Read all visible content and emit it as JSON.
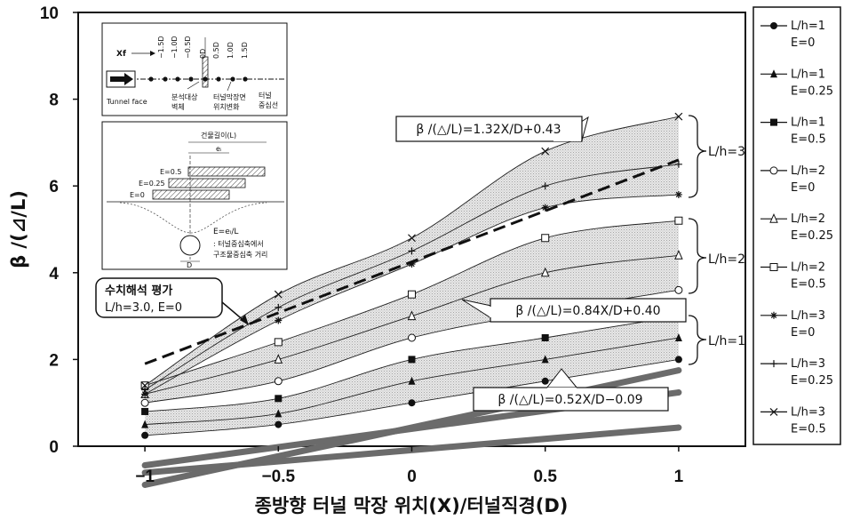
{
  "chart_data": {
    "type": "line",
    "xlabel": "종방향 터널 막장 위치(X)/터널직경(D)",
    "ylabel": "β /(⊿/L)",
    "xlim": [
      -1.25,
      1.25
    ],
    "ylim": [
      0,
      10
    ],
    "x_ticks": [
      "−1",
      "−0.5",
      "0",
      "0.5",
      "1"
    ],
    "y_ticks": [
      "0",
      "2",
      "4",
      "6",
      "8",
      "10"
    ],
    "x": [
      -1,
      -0.5,
      0,
      0.5,
      1
    ],
    "series": [
      {
        "name": "L/h=1\nE=0",
        "marker": "filled-circle",
        "values": [
          0.25,
          0.5,
          1.0,
          1.5,
          2.0
        ]
      },
      {
        "name": "L/h=1\nE=0.25",
        "marker": "filled-triangle",
        "values": [
          0.5,
          0.75,
          1.5,
          2.0,
          2.5
        ]
      },
      {
        "name": "L/h=1\nE=0.5",
        "marker": "filled-square",
        "values": [
          0.8,
          1.1,
          2.0,
          2.5,
          3.0
        ]
      },
      {
        "name": "L/h=2\nE=0",
        "marker": "open-circle",
        "values": [
          1.0,
          1.5,
          2.5,
          3.1,
          3.6
        ]
      },
      {
        "name": "L/h=2\nE=0.25",
        "marker": "open-triangle",
        "values": [
          1.2,
          2.0,
          3.0,
          4.0,
          4.4
        ]
      },
      {
        "name": "L/h=2\nE=0.5",
        "marker": "open-square",
        "values": [
          1.4,
          2.4,
          3.5,
          4.8,
          5.2
        ]
      },
      {
        "name": "L/h=3\nE=0",
        "marker": "asterisk",
        "values": [
          1.2,
          2.9,
          4.2,
          5.5,
          5.8
        ]
      },
      {
        "name": "L/h=3\nE=0.25",
        "marker": "plus",
        "values": [
          1.3,
          3.2,
          4.5,
          6.0,
          6.5
        ]
      },
      {
        "name": "L/h=3\nE=0.5",
        "marker": "cross",
        "values": [
          1.4,
          3.5,
          4.8,
          6.8,
          7.6
        ]
      }
    ],
    "fits": [
      {
        "label": "β /(△/L)=0.52X/D−0.09",
        "slope": 0.52,
        "intercept": -0.09,
        "group": "L/h=1"
      },
      {
        "label": "β /(△/L)=0.84X/D+0.40",
        "slope": 0.84,
        "intercept": 0.4,
        "group": "L/h=2"
      },
      {
        "label": "β /(△/L)=1.32X/D+0.43",
        "slope": 1.32,
        "intercept": 0.43,
        "group": "L/h=3"
      }
    ],
    "numerical": {
      "label_line1": "수치해석 평가",
      "label_line2": "L/h=3.0, E=0",
      "x": [
        -1,
        1
      ],
      "values": [
        1.9,
        6.6
      ]
    },
    "group_labels": [
      "L/h=3",
      "L/h=2",
      "L/h=1"
    ],
    "legend": "right",
    "grid": false,
    "colors": {
      "fit_line": "#6b6b6b",
      "band": "#d2d2d2",
      "marker": "#111111"
    }
  },
  "inset_top": {
    "xf_label": "Xf",
    "positions": [
      "−1.5D",
      "−1.0D",
      "−0.5D",
      "0D",
      "0.5D",
      "1.0D",
      "1.5D"
    ],
    "tunnel_face": "Tunnel face",
    "target_wall_1": "분석대상",
    "target_wall_2": "벽체",
    "face_change_1": "터널막장면",
    "face_change_2": "위치변화",
    "centerline_1": "터널",
    "centerline_2": "중심선"
  },
  "inset_bottom": {
    "building_length": "건물길이(L)",
    "ei_label": "eᵢ",
    "e_labels": [
      "E=0.5",
      "E=0.25",
      "E=0"
    ],
    "d_label": "D",
    "formula": "E=eᵢ/L",
    "note_1": ": 터널중심축에서",
    "note_2": "구조물중심축 거리"
  }
}
